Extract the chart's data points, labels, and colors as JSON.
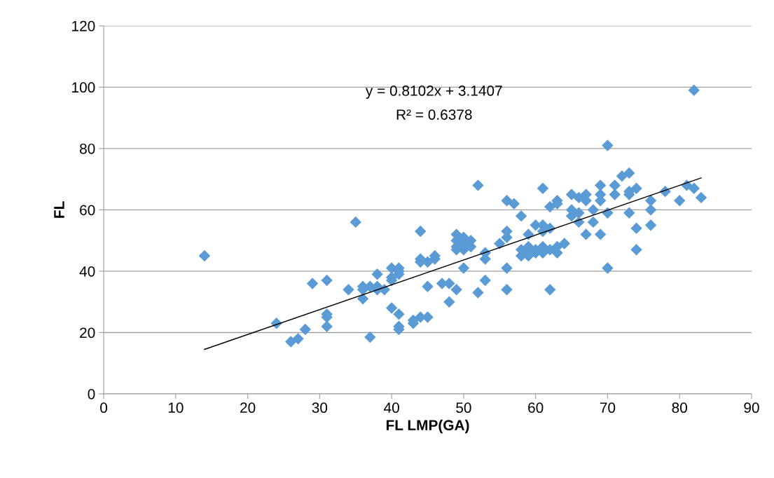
{
  "chart_data": {
    "type": "scatter",
    "xlabel": "FL LMP(GA)",
    "ylabel": "FL",
    "xlim": [
      0,
      90
    ],
    "xticks": [
      0,
      10,
      20,
      30,
      40,
      50,
      60,
      70,
      80,
      90
    ],
    "ylim": [
      0,
      120
    ],
    "yticks": [
      0,
      20,
      40,
      60,
      80,
      100,
      120
    ],
    "grid": "y",
    "marker": "diamond",
    "legend": false,
    "annotations": [
      "y = 0.8102x + 3.1407",
      "R² = 0.6378"
    ],
    "series": [
      {
        "color": "#5b9bd5",
        "x": [
          14,
          24,
          26,
          27,
          28,
          29,
          31,
          31,
          31,
          31,
          34,
          35,
          36,
          36,
          36,
          37,
          37,
          38,
          38,
          38,
          39,
          40,
          40,
          40,
          40,
          41,
          41,
          41,
          41,
          41,
          41,
          43,
          43,
          44,
          44,
          44,
          44,
          45,
          45,
          45,
          46,
          46,
          47,
          48,
          48,
          49,
          49,
          49,
          49,
          49,
          50,
          50,
          50,
          50,
          51,
          51,
          52,
          52,
          53,
          53,
          53,
          55,
          56,
          56,
          56,
          56,
          56,
          57,
          58,
          58,
          58,
          59,
          59,
          59,
          59,
          60,
          60,
          60,
          61,
          61,
          61,
          61,
          61,
          62,
          62,
          62,
          62,
          63,
          63,
          63,
          63,
          64,
          65,
          65,
          65,
          66,
          66,
          66,
          67,
          67,
          67,
          68,
          68,
          69,
          69,
          69,
          69,
          70,
          70,
          70,
          71,
          71,
          72,
          73,
          73,
          73,
          73,
          74,
          74,
          74,
          76,
          76,
          76,
          78,
          80,
          81,
          82,
          82,
          83
        ],
        "values": [
          45,
          23,
          17,
          18,
          21,
          36,
          37,
          26,
          25,
          22,
          34,
          56,
          35,
          34,
          31,
          35,
          18.5,
          39,
          35,
          34,
          34,
          41,
          38,
          37,
          28,
          41,
          39,
          40,
          26,
          22,
          21,
          24,
          23,
          53,
          44,
          43,
          25,
          43,
          35,
          25,
          44,
          45,
          36,
          36,
          30,
          52,
          50,
          48,
          47,
          34,
          51,
          49,
          47,
          41,
          50,
          48,
          68,
          33,
          46,
          44,
          37,
          49,
          63,
          53,
          51,
          41,
          34,
          62,
          58,
          47,
          45,
          52,
          48,
          46,
          45,
          55,
          47,
          46,
          67,
          55,
          53,
          48,
          46,
          61,
          54,
          47,
          34,
          63,
          62,
          48,
          46,
          49,
          65,
          60,
          58,
          64,
          59,
          56,
          65,
          63,
          52,
          60,
          56,
          68,
          65,
          63,
          52,
          81,
          59,
          41,
          68,
          65,
          71,
          72,
          66,
          65,
          59,
          67,
          54,
          47,
          63,
          60,
          55,
          66,
          63,
          68,
          99,
          67,
          64
        ]
      },
      {
        "type": "line",
        "color": "#000000",
        "x": [
          14,
          83
        ],
        "values": [
          14.5,
          70.4
        ],
        "marker": "none"
      }
    ]
  }
}
